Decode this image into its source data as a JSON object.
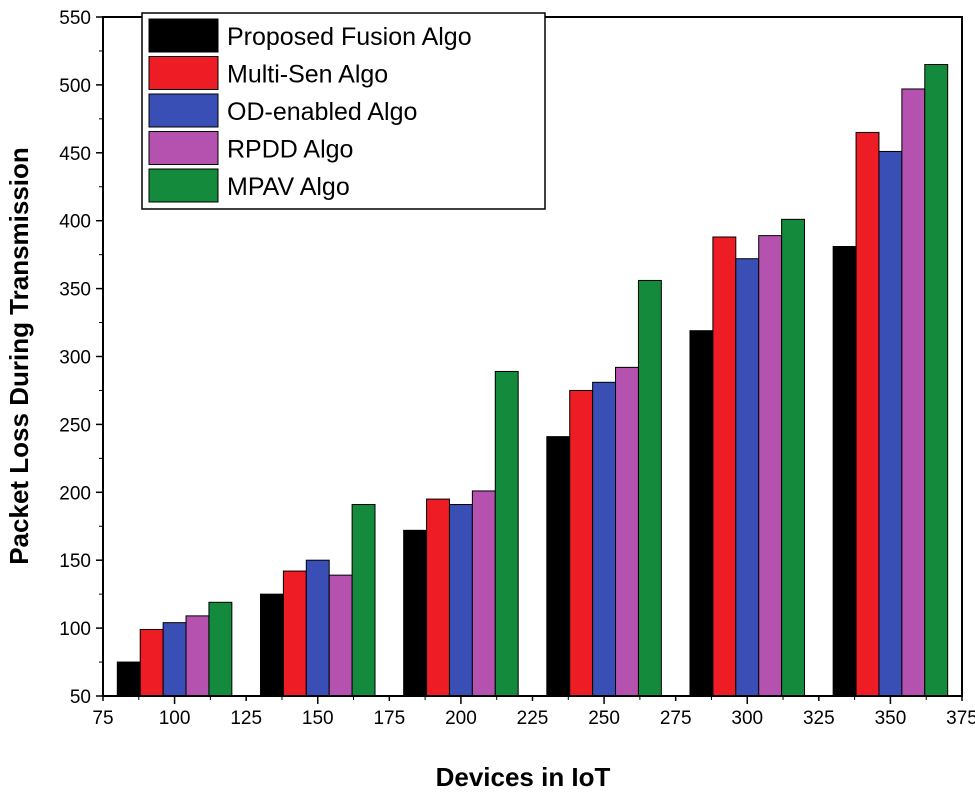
{
  "chart_data": {
    "type": "bar",
    "title": "",
    "xlabel": "Devices in IoT",
    "ylabel": "Packet Loss During Transmission",
    "xlim": [
      75,
      375
    ],
    "ylim": [
      50,
      550
    ],
    "x_ticks": [
      75,
      100,
      125,
      150,
      175,
      200,
      225,
      250,
      275,
      300,
      325,
      350,
      375
    ],
    "y_ticks": [
      50,
      100,
      150,
      200,
      250,
      300,
      350,
      400,
      450,
      500,
      550
    ],
    "categories": [
      100,
      150,
      200,
      250,
      300,
      350
    ],
    "bar_width": 8,
    "legend_position": "top-left",
    "series": [
      {
        "name": "Proposed Fusion Algo",
        "color": "#000000",
        "values": [
          75,
          125,
          172,
          241,
          319,
          381
        ]
      },
      {
        "name": "Multi-Sen Algo",
        "color": "#ee1c24",
        "values": [
          99,
          142,
          195,
          275,
          388,
          465
        ]
      },
      {
        "name": "OD-enabled Algo",
        "color": "#3a4fb5",
        "values": [
          104,
          150,
          191,
          281,
          372,
          451
        ]
      },
      {
        "name": "RPDD Algo",
        "color": "#b552b0",
        "values": [
          109,
          139,
          201,
          292,
          389,
          497
        ]
      },
      {
        "name": "MPAV Algo",
        "color": "#138a3c",
        "values": [
          119,
          191,
          289,
          356,
          401,
          515
        ]
      }
    ]
  }
}
